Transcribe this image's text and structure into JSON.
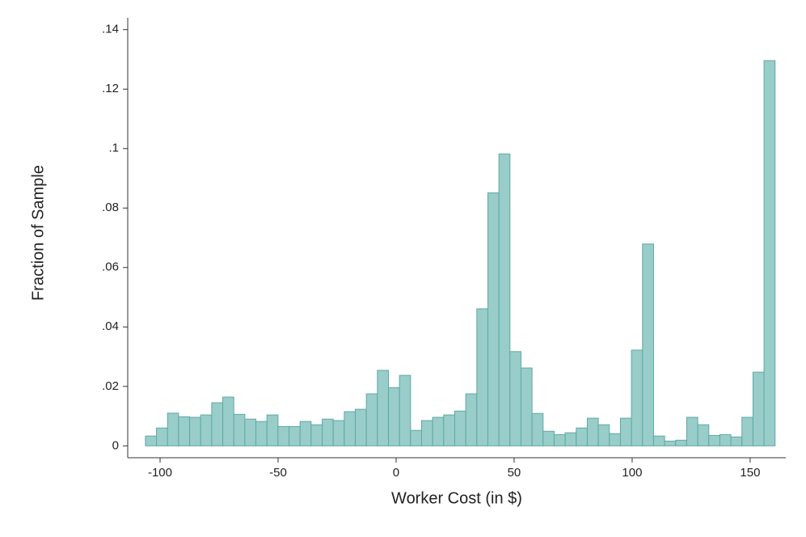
{
  "chart_data": {
    "type": "histogram",
    "x_label": "Worker Cost (in $)",
    "y_label": "Fraction of Sample",
    "bins": [
      -106.2,
      -101.52,
      -96.84,
      -92.16,
      -87.48,
      -82.8,
      -78.12,
      -73.44,
      -68.76,
      -64.08,
      -59.4,
      -54.72,
      -50.04,
      -45.36,
      -40.68,
      -36,
      -31.32,
      -26.64,
      -21.96,
      -17.28,
      -12.6,
      -7.92,
      -3.24,
      1.44,
      6.12,
      10.8,
      15.48,
      20.16,
      24.84,
      29.52,
      34.2,
      38.88,
      43.56,
      48.24,
      52.92,
      57.6,
      62.28,
      66.96,
      71.64,
      76.32,
      81,
      85.68,
      90.36,
      95.04,
      99.72,
      104.4,
      109.08,
      113.76,
      118.44,
      123.12,
      127.8,
      132.48,
      137.16,
      141.84,
      146.52,
      151.2,
      155.88,
      160.56
    ],
    "values": [
      0.0033,
      0.006,
      0.011,
      0.0098,
      0.0096,
      0.0104,
      0.0145,
      0.0164,
      0.0106,
      0.009,
      0.0082,
      0.0104,
      0.0065,
      0.0065,
      0.0082,
      0.0071,
      0.009,
      0.0085,
      0.0115,
      0.0123,
      0.0175,
      0.0254,
      0.0196,
      0.0237,
      0.0052,
      0.0085,
      0.0096,
      0.0104,
      0.0117,
      0.0175,
      0.0461,
      0.0851,
      0.0982,
      0.0317,
      0.0262,
      0.0109,
      0.0049,
      0.0038,
      0.0044,
      0.006,
      0.0093,
      0.0071,
      0.0041,
      0.0093,
      0.0322,
      0.0679,
      0.0033,
      0.0016,
      0.0019,
      0.0096,
      0.0071,
      0.0035,
      0.0038,
      0.003,
      0.0096,
      0.0248,
      0.1296
    ],
    "color": "#99cdc9",
    "edge_color": "#5fa8a3",
    "xlim": [
      -113.7,
      165.1
    ],
    "ylim": [
      -0.004,
      0.144
    ],
    "xticks": [
      -100,
      -50,
      0,
      50,
      100,
      150
    ],
    "yticks": [
      0,
      {
        "value": 0.02,
        "label": ".02"
      },
      {
        "value": 0.04,
        "label": ".04"
      },
      {
        "value": 0.06,
        "label": ".06"
      },
      {
        "value": 0.08,
        "label": ".08"
      },
      {
        "value": 0.1,
        "label": ".1"
      },
      {
        "value": 0.12,
        "label": ".12"
      },
      {
        "value": 0.14,
        "label": ".14"
      }
    ],
    "grid": false
  }
}
